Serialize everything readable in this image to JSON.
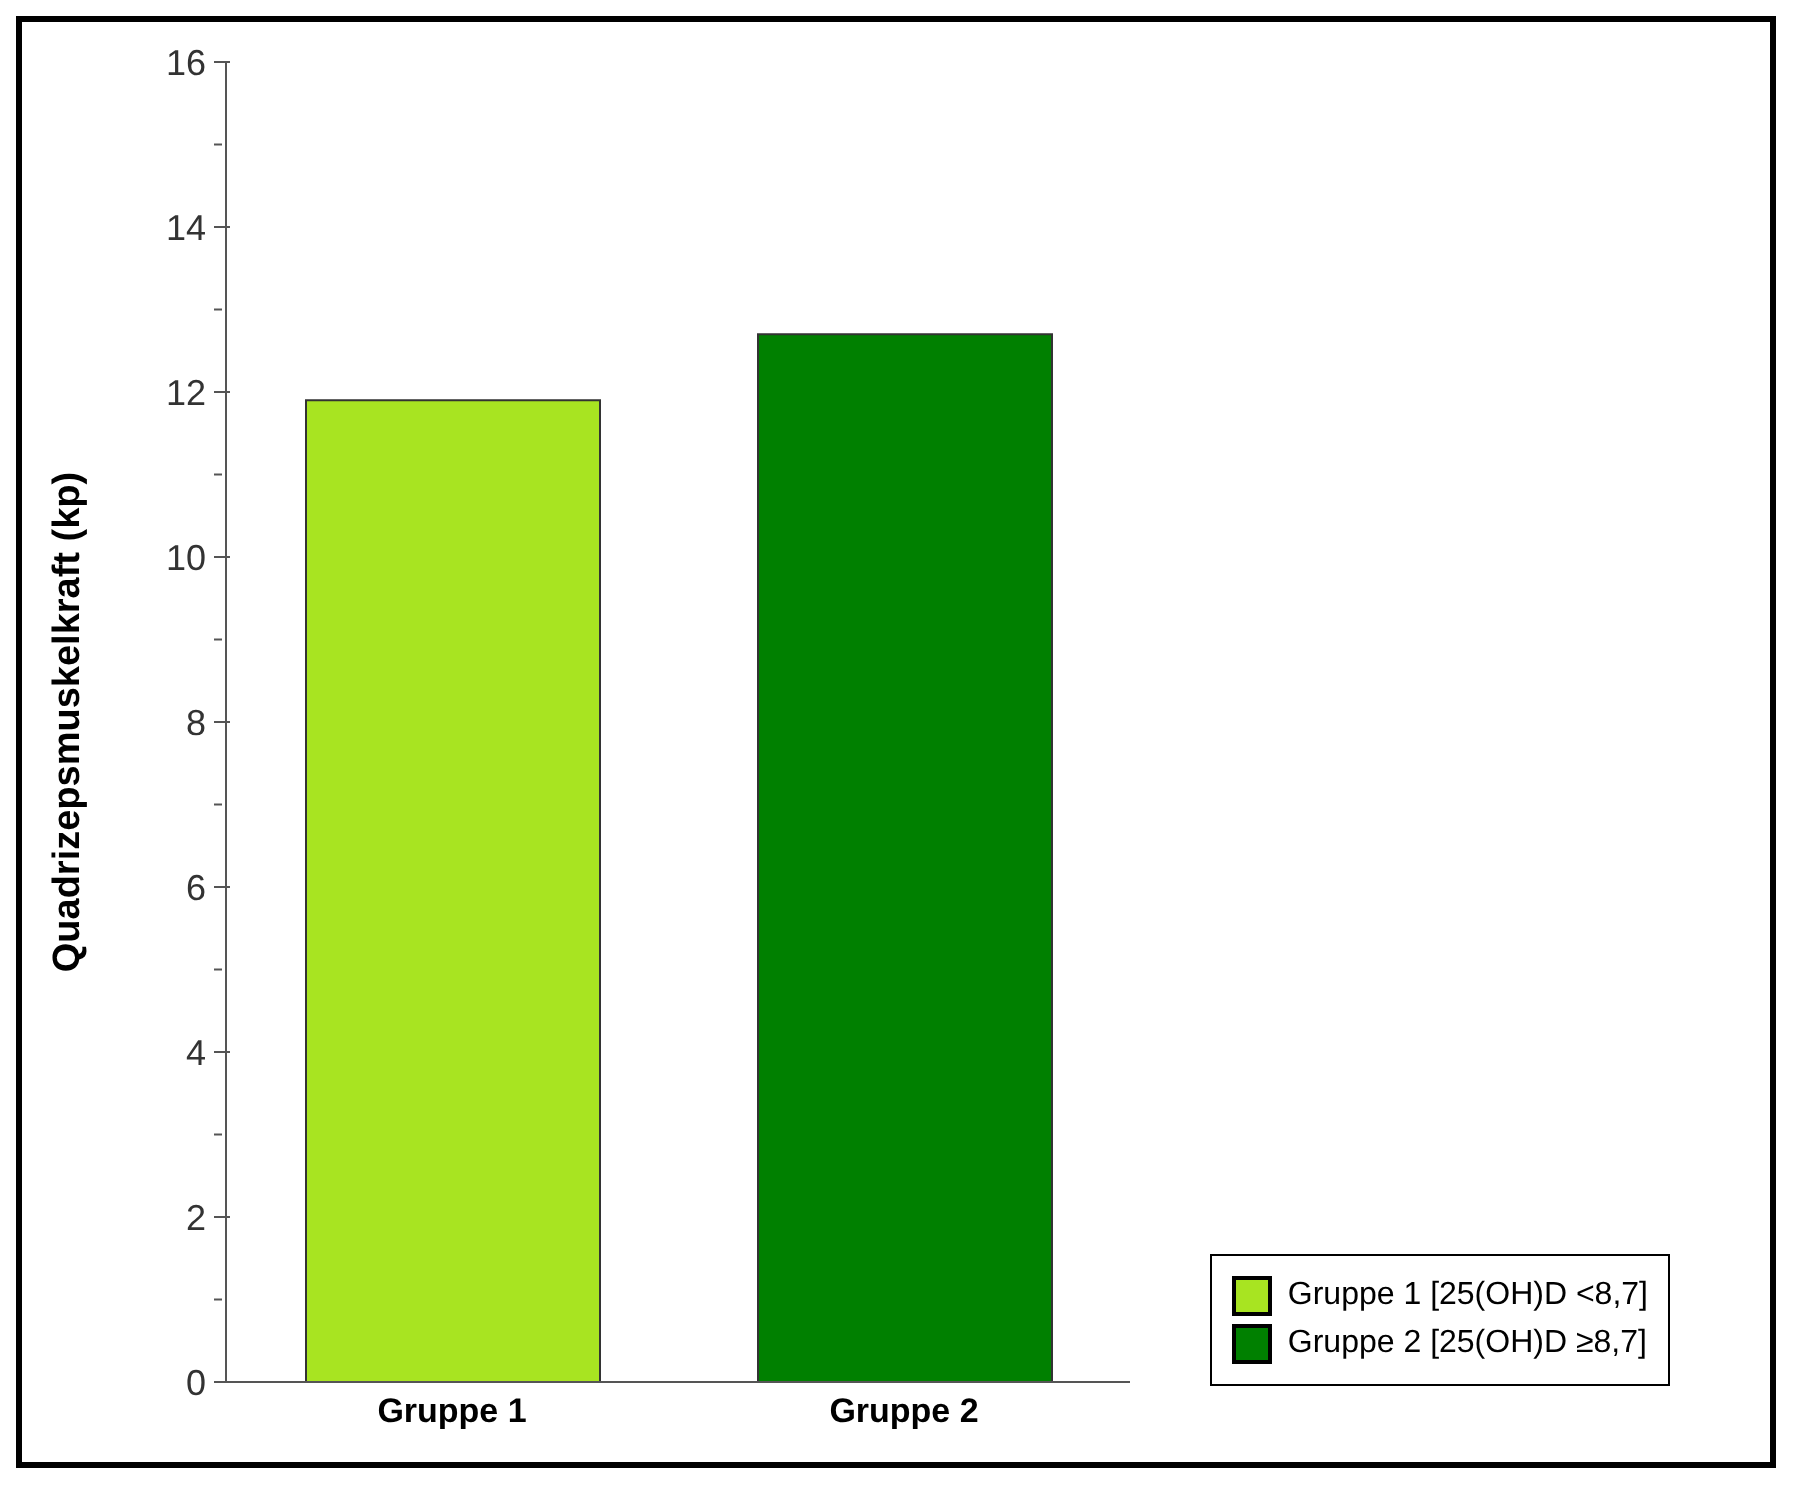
{
  "chart_data": {
    "type": "bar",
    "ylabel": "Quadrizepsmuskelkraft (kp)",
    "categories": [
      "Gruppe 1",
      "Gruppe 2"
    ],
    "stacked": true,
    "series": [
      {
        "name": "Gruppe 1 [25(OH)D <8,7]",
        "color": "#a8e421",
        "values": [
          11.9,
          null
        ]
      },
      {
        "name": "Gruppe 2 [25(OH)D ≥8,7]",
        "color": "#008000",
        "values": [
          null,
          12.7
        ]
      }
    ],
    "ylim": [
      0,
      16
    ],
    "yticks": [
      0,
      {
        "value": 1,
        "label": null
      },
      2,
      {
        "value": 3,
        "label": null
      },
      4,
      {
        "value": 5,
        "label": null
      },
      6,
      {
        "value": 7,
        "label": null
      },
      8,
      {
        "value": 9,
        "label": null
      },
      10,
      {
        "value": 11,
        "label": null
      },
      12,
      {
        "value": 13,
        "label": null
      },
      14,
      {
        "value": 15,
        "label": null
      },
      16
    ],
    "grid": false,
    "legend": "bottom right"
  }
}
